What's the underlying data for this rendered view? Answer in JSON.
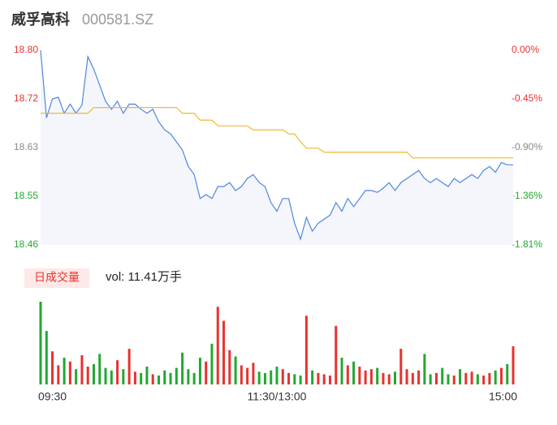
{
  "header": {
    "name": "威孚高科",
    "code": "000581.SZ"
  },
  "chart_data": [
    {
      "type": "line",
      "xlim": [
        0,
        240
      ],
      "x": [
        0,
        3,
        6,
        9,
        12,
        15,
        18,
        21,
        24,
        27,
        30,
        33,
        36,
        39,
        42,
        45,
        48,
        51,
        54,
        57,
        60,
        63,
        66,
        69,
        72,
        75,
        78,
        81,
        84,
        87,
        90,
        93,
        96,
        99,
        102,
        105,
        108,
        111,
        114,
        117,
        120,
        123,
        126,
        129,
        132,
        135,
        138,
        141,
        144,
        147,
        150,
        153,
        156,
        159,
        162,
        165,
        168,
        171,
        174,
        177,
        180,
        183,
        186,
        189,
        192,
        195,
        198,
        201,
        204,
        207,
        210,
        213,
        216,
        219,
        222,
        225,
        228,
        231,
        234,
        237,
        240
      ],
      "series": [
        {
          "color": "#4f86e3",
          "fill": "#f4f6fb",
          "values": [
            18.8,
            18.682,
            18.715,
            18.718,
            18.69,
            18.706,
            18.69,
            18.704,
            18.789,
            18.767,
            18.739,
            18.711,
            18.697,
            18.711,
            18.69,
            18.706,
            18.706,
            18.697,
            18.69,
            18.697,
            18.675,
            18.661,
            18.654,
            18.64,
            18.626,
            18.597,
            18.583,
            18.541,
            18.548,
            18.541,
            18.562,
            18.562,
            18.569,
            18.555,
            18.562,
            18.576,
            18.583,
            18.569,
            18.562,
            18.534,
            18.519,
            18.541,
            18.541,
            18.498,
            18.47,
            18.508,
            18.484,
            18.498,
            18.505,
            18.512,
            18.534,
            18.519,
            18.541,
            18.527,
            18.541,
            18.555,
            18.555,
            18.552,
            18.559,
            18.569,
            18.555,
            18.569,
            18.576,
            18.583,
            18.59,
            18.576,
            18.569,
            18.576,
            18.569,
            18.562,
            18.576,
            18.569,
            18.576,
            18.583,
            18.576,
            18.59,
            18.597,
            18.587,
            18.604,
            18.6,
            18.6
          ]
        },
        {
          "color": "#f5b731",
          "values": [
            18.69,
            18.69,
            18.69,
            18.69,
            18.69,
            18.69,
            18.69,
            18.69,
            18.69,
            18.7,
            18.7,
            18.7,
            18.7,
            18.7,
            18.7,
            18.7,
            18.7,
            18.7,
            18.7,
            18.7,
            18.7,
            18.7,
            18.7,
            18.7,
            18.69,
            18.69,
            18.69,
            18.678,
            18.678,
            18.678,
            18.668,
            18.668,
            18.668,
            18.668,
            18.668,
            18.668,
            18.661,
            18.661,
            18.661,
            18.661,
            18.661,
            18.661,
            18.654,
            18.654,
            18.64,
            18.629,
            18.629,
            18.629,
            18.622,
            18.622,
            18.622,
            18.622,
            18.622,
            18.622,
            18.622,
            18.622,
            18.622,
            18.622,
            18.622,
            18.622,
            18.622,
            18.622,
            18.622,
            18.612,
            18.612,
            18.612,
            18.612,
            18.612,
            18.612,
            18.612,
            18.612,
            18.612,
            18.612,
            18.612,
            18.612,
            18.612,
            18.612,
            18.612,
            18.612,
            18.612,
            18.612
          ]
        }
      ],
      "ylim": [
        18.46,
        18.8
      ],
      "yticks": [
        {
          "value": 18.8,
          "label": "18.80"
        },
        {
          "value": 18.715,
          "label": "18.72"
        },
        {
          "value": 18.63,
          "label": "18.63"
        },
        {
          "value": 18.545,
          "label": "18.55"
        },
        {
          "value": 18.46,
          "label": "18.46"
        }
      ],
      "ytick_colors": [
        "#e8322f",
        "#e8322f",
        "#888888",
        "#22a831",
        "#22a831"
      ],
      "y2lim": [
        -1.809,
        0
      ],
      "y2ticks": [
        {
          "value": 0,
          "label": "0.00%"
        },
        {
          "value": -0.452,
          "label": "-0.45%"
        },
        {
          "value": -0.904,
          "label": "-0.90%"
        },
        {
          "value": -1.357,
          "label": "-1.36%"
        },
        {
          "value": -1.809,
          "label": "-1.81%"
        }
      ],
      "y2tick_colors": [
        "#e8322f",
        "#e8322f",
        "#888888",
        "#22a831",
        "#22a831"
      ],
      "grid": false
    },
    {
      "type": "bar",
      "label": "日成交量",
      "summary": "vol: 11.41万手",
      "xlim": [
        0,
        240
      ],
      "x": [
        0,
        3,
        6,
        9,
        12,
        15,
        18,
        21,
        24,
        27,
        30,
        33,
        36,
        39,
        42,
        45,
        48,
        51,
        54,
        57,
        60,
        63,
        66,
        69,
        72,
        75,
        78,
        81,
        84,
        87,
        90,
        93,
        96,
        99,
        102,
        105,
        108,
        111,
        114,
        117,
        120,
        123,
        126,
        129,
        132,
        135,
        138,
        141,
        144,
        147,
        150,
        153,
        156,
        159,
        162,
        165,
        168,
        171,
        174,
        177,
        180,
        183,
        186,
        189,
        192,
        195,
        198,
        201,
        204,
        207,
        210,
        213,
        216,
        219,
        222,
        225,
        228,
        231,
        234,
        237,
        240
      ],
      "values": [
        6500,
        4200,
        2600,
        1500,
        2100,
        1800,
        1200,
        2300,
        1400,
        1600,
        2400,
        1300,
        1100,
        1900,
        1200,
        2800,
        1000,
        900,
        1400,
        800,
        700,
        1100,
        900,
        1300,
        2500,
        1200,
        900,
        2100,
        1800,
        3200,
        6100,
        5000,
        2700,
        2200,
        1500,
        1300,
        1700,
        1000,
        900,
        1100,
        1400,
        1200,
        900,
        800,
        700,
        5400,
        1100,
        900,
        800,
        700,
        4600,
        2100,
        1500,
        1800,
        1400,
        1100,
        1200,
        1300,
        900,
        800,
        1000,
        2800,
        1200,
        900,
        1100,
        2400,
        800,
        900,
        1300,
        800,
        700,
        1200,
        900,
        1000,
        800,
        700,
        900,
        1100,
        1300,
        1600,
        3000
      ],
      "up_color": "#e8322f",
      "down_color": "#22a831",
      "xticks": [
        {
          "value": 0,
          "label": "09:30"
        },
        {
          "value": 120,
          "label": "11:30/13:00"
        },
        {
          "value": 240,
          "label": "15:00"
        }
      ]
    }
  ]
}
